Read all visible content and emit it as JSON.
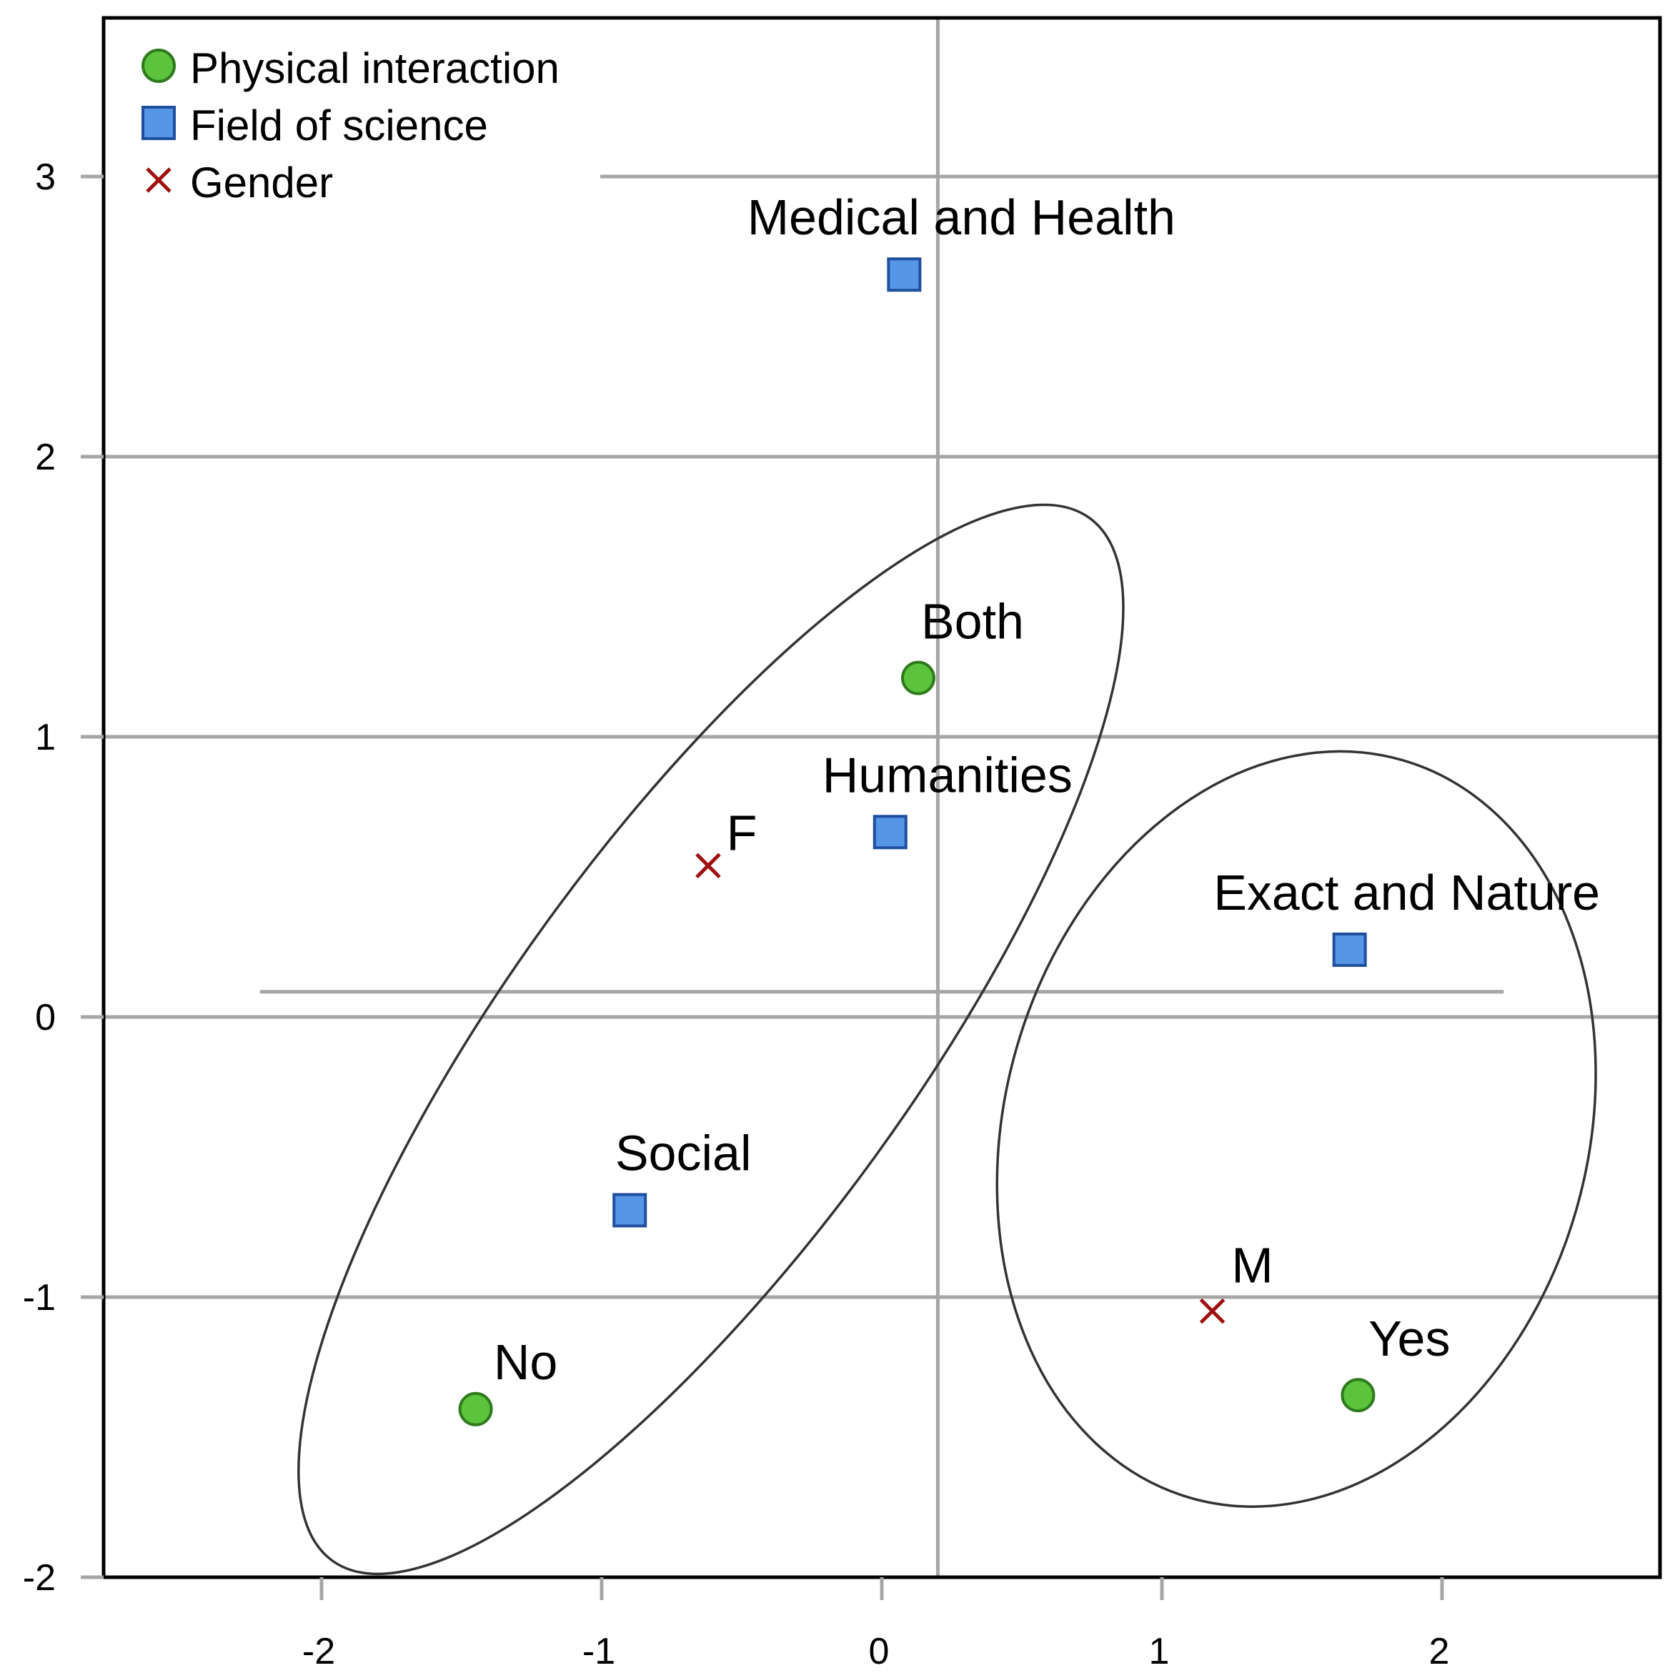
{
  "chart_data": {
    "type": "scatter",
    "title": "",
    "xlabel": "",
    "ylabel": "",
    "xlim": [
      -2.8,
      2.75
    ],
    "ylim": [
      -2,
      3.55
    ],
    "x_ticks": [
      "-2",
      "-1",
      "0",
      "1",
      "2"
    ],
    "y_ticks": [
      "-2",
      "-1",
      "0",
      "1",
      "2",
      "3"
    ],
    "grid": "horizontal",
    "legend_position": "top-left",
    "colors": {
      "physical_interaction": "#5cc43c",
      "field_of_science": "#5596e6",
      "gender": "#a01010",
      "grid": "#a6a6a6",
      "ellipse": "#333333"
    },
    "series": [
      {
        "name": "Physical interaction",
        "marker": "circle",
        "points": [
          {
            "label": "Both",
            "x": 0.13,
            "y": 1.21
          },
          {
            "label": "No",
            "x": -1.45,
            "y": -1.4
          },
          {
            "label": "Yes",
            "x": 1.7,
            "y": -1.35
          }
        ]
      },
      {
        "name": "Field of science",
        "marker": "square",
        "points": [
          {
            "label": "Medical and Health",
            "x": 0.08,
            "y": 2.65
          },
          {
            "label": "Humanities",
            "x": 0.03,
            "y": 0.66
          },
          {
            "label": "Exact and Nature",
            "x": 1.67,
            "y": 0.24
          },
          {
            "label": "Social",
            "x": -0.9,
            "y": -0.69
          }
        ]
      },
      {
        "name": "Gender",
        "marker": "x",
        "points": [
          {
            "label": "F",
            "x": -0.62,
            "y": 0.54
          },
          {
            "label": "M",
            "x": 1.18,
            "y": -1.05
          }
        ]
      }
    ],
    "ellipses": [
      {
        "name": "cluster-left",
        "cx": -0.61,
        "cy": -0.08,
        "rx": 0.72,
        "ry": 2.3,
        "rotation_deg": 36
      },
      {
        "name": "cluster-right",
        "cx": 1.48,
        "cy": -0.4,
        "rx": 1.04,
        "ry": 1.37,
        "rotation_deg": 16
      }
    ]
  }
}
